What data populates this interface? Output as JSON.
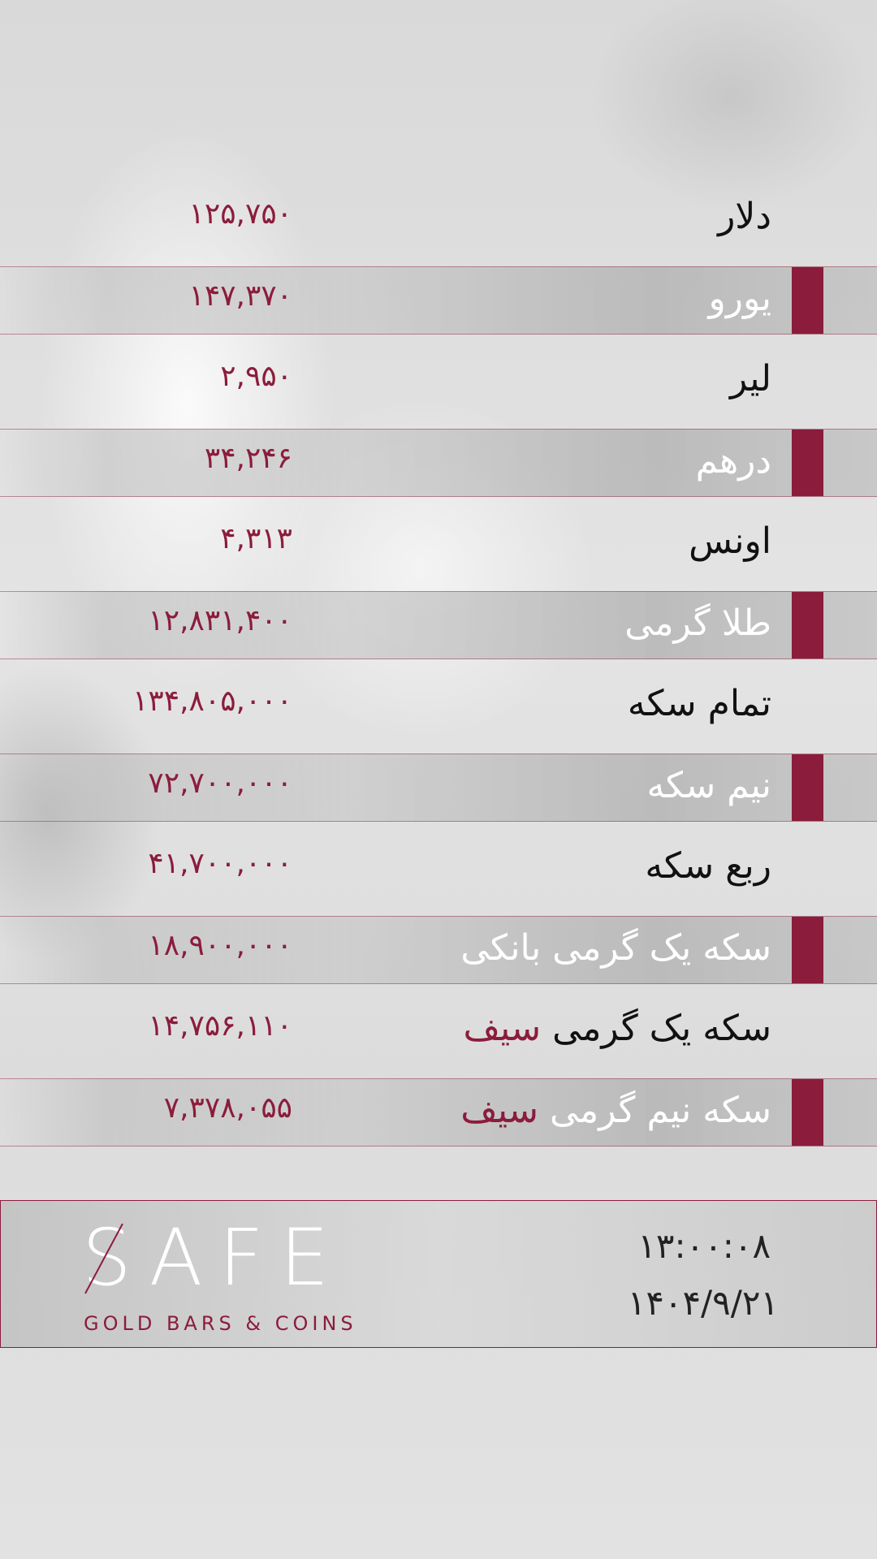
{
  "colors": {
    "accent": "#8b1c3c",
    "label_dark": "#111111",
    "label_light": "#ffffff"
  },
  "rates": [
    {
      "label": "دلار",
      "value": "۱۲۵,۷۵۰",
      "shaded": false
    },
    {
      "label": "یورو",
      "value": "۱۴۷,۳۷۰",
      "shaded": true
    },
    {
      "label": "لیر",
      "value": "۲,۹۵۰",
      "shaded": false
    },
    {
      "label": "درهم",
      "value": "۳۴,۲۴۶",
      "shaded": true
    },
    {
      "label": "اونس",
      "value": "۴,۳۱۳",
      "shaded": false
    },
    {
      "label": "طلا گرمی",
      "value": "۱۲,۸۳۱,۴۰۰",
      "shaded": true
    },
    {
      "label": "تمام سکه",
      "value": "۱۳۴,۸۰۵,۰۰۰",
      "shaded": false
    },
    {
      "label": "نیم سکه",
      "value": "۷۲,۷۰۰,۰۰۰",
      "shaded": true
    },
    {
      "label": "ربع سکه",
      "value": "۴۱,۷۰۰,۰۰۰",
      "shaded": false
    },
    {
      "label": "سکه یک گرمی بانکی",
      "value": "۱۸,۹۰۰,۰۰۰",
      "shaded": true
    },
    {
      "label": "سکه یک گرمی",
      "brand": "سیف",
      "value": "۱۴,۷۵۶,۱۱۰",
      "shaded": false
    },
    {
      "label": "سکه نیم گرمی",
      "brand": "سیف",
      "value": "۷,۳۷۸,۰۵۵",
      "shaded": true
    }
  ],
  "footer": {
    "logo_word": "SAFE",
    "logo_tagline": "GOLD BARS & COINS",
    "time": "۱۳:۰۰:۰۸",
    "date": "۱۴۰۴/۹/۲۱"
  }
}
